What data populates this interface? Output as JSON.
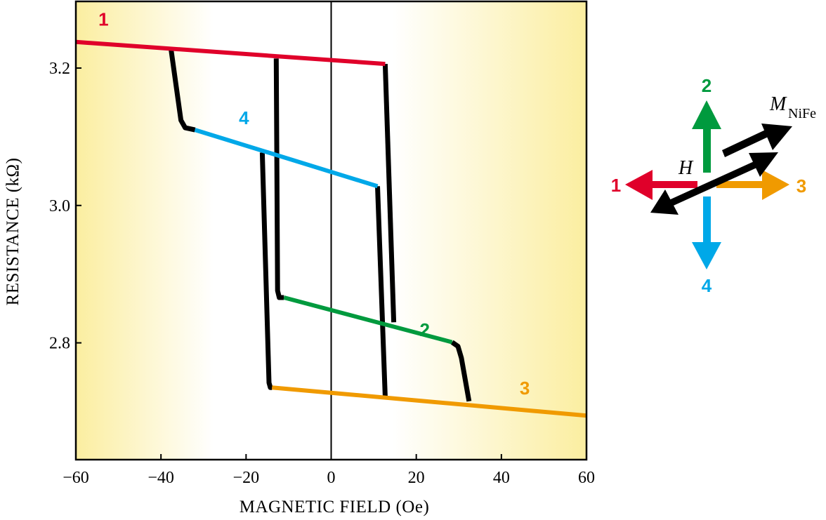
{
  "chart_data": {
    "type": "line",
    "title": "",
    "xlabel": "MAGNETIC FIELD (Oe)",
    "ylabel": "RESISTANCE (kΩ)",
    "xlim": [
      -60,
      60
    ],
    "ylim": [
      2.63,
      3.297
    ],
    "xticks": [
      -60,
      -40,
      -20,
      0,
      20,
      40,
      60
    ],
    "xtick_labels": [
      "−60",
      "−40",
      "−20",
      "0",
      "20",
      "40",
      "60"
    ],
    "yticks": [
      2.8,
      3.0,
      3.2
    ],
    "ytick_labels": [
      "2.8",
      "3.0",
      "3.2"
    ],
    "grid": false,
    "colors": {
      "1": "#e0002a",
      "2": "#009a3e",
      "3": "#f09a00",
      "4": "#00a8e8",
      "transition": "#000000",
      "background": "#fcf2b0"
    },
    "series": [
      {
        "name": "1",
        "color_key": "1",
        "points": [
          [
            -60,
            3.238
          ],
          [
            12.7,
            3.206
          ]
        ],
        "label_at": [
          -53.5,
          3.262
        ]
      },
      {
        "name": "4",
        "color_key": "4",
        "points": [
          [
            -32,
            3.11
          ],
          [
            10.9,
            3.028
          ]
        ],
        "label_at": [
          -20.5,
          3.118
        ]
      },
      {
        "name": "2",
        "color_key": "2",
        "points": [
          [
            -11.1,
            2.866
          ],
          [
            28.4,
            2.801
          ]
        ],
        "label_at": [
          22,
          2.81
        ]
      },
      {
        "name": "3",
        "color_key": "3",
        "points": [
          [
            -13.9,
            2.735
          ],
          [
            60,
            2.694
          ]
        ],
        "label_at": [
          45.5,
          2.725
        ]
      }
    ],
    "transitions": [
      {
        "points": [
          [
            -37.6,
            3.226
          ],
          [
            -35.3,
            3.124
          ],
          [
            -34.3,
            3.113
          ],
          [
            -32,
            3.11
          ]
        ]
      },
      {
        "points": [
          [
            -12.9,
            3.214
          ],
          [
            -12.6,
            2.876
          ],
          [
            -12.2,
            2.866
          ],
          [
            -11.1,
            2.866
          ]
        ]
      },
      {
        "points": [
          [
            -16.2,
            3.077
          ],
          [
            -14.6,
            2.742
          ],
          [
            -14.3,
            2.735
          ],
          [
            -13.9,
            2.735
          ]
        ]
      },
      {
        "points": [
          [
            12.7,
            3.206
          ],
          [
            14.7,
            2.83
          ]
        ]
      },
      {
        "points": [
          [
            10.9,
            3.028
          ],
          [
            12.7,
            2.722
          ]
        ]
      },
      {
        "points": [
          [
            28.4,
            2.801
          ],
          [
            29.8,
            2.795
          ],
          [
            30.6,
            2.778
          ],
          [
            32.4,
            2.715
          ]
        ]
      }
    ]
  },
  "inset": {
    "arrow_labels": [
      "1",
      "2",
      "3",
      "4"
    ],
    "h_label": "H",
    "m_label": "M",
    "m_subscript": "NiFe"
  }
}
